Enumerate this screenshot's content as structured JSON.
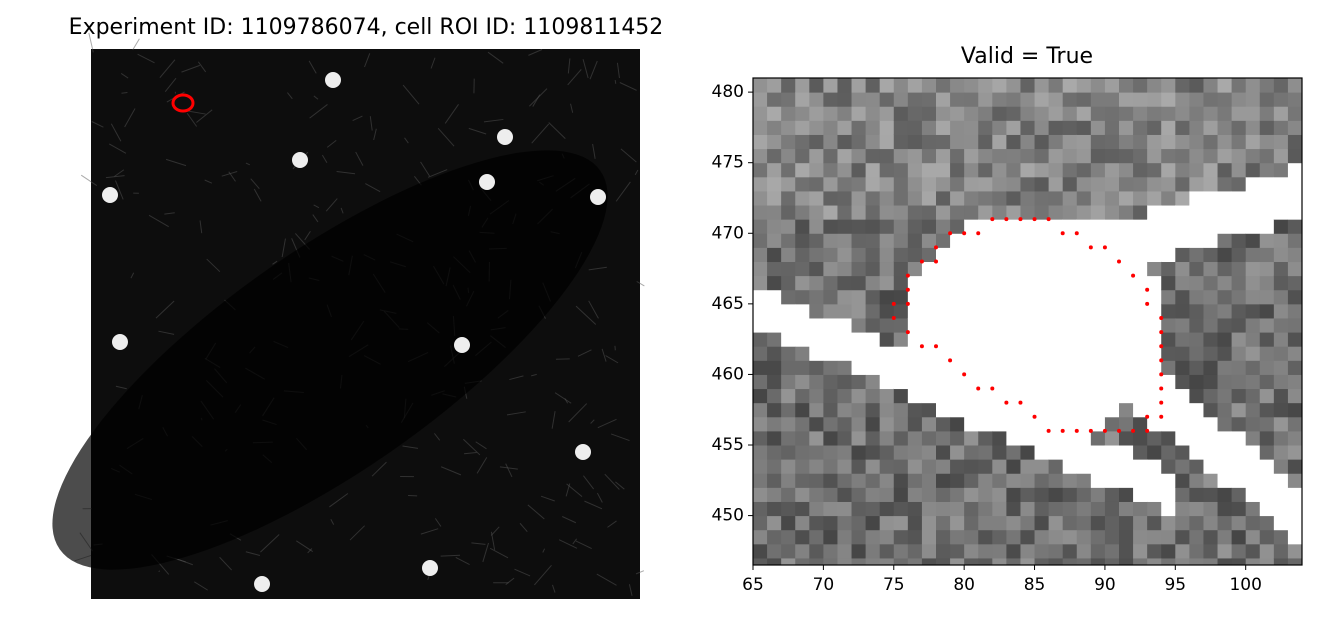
{
  "title": "Experiment ID: 1109786074, cell ROI ID: 1109811452",
  "chart_data": [
    {
      "type": "image"
    },
    {
      "type": "scatter",
      "title": "Valid = True",
      "color": "#ff0000",
      "x": [
        82,
        83,
        84,
        85,
        86,
        87,
        88,
        89,
        90,
        91,
        92,
        93,
        93,
        94,
        94,
        94,
        94,
        94,
        94,
        94,
        94,
        93,
        93,
        92,
        91,
        90,
        89,
        88,
        87,
        86,
        85,
        84,
        83,
        82,
        81,
        80,
        79,
        78,
        77,
        76,
        75,
        75,
        76,
        76,
        76,
        77,
        78,
        78,
        79,
        80,
        81
      ],
      "y": [
        471,
        471,
        471,
        471,
        471,
        470,
        470,
        469,
        469,
        468,
        467,
        466,
        465,
        464,
        463,
        462,
        461,
        460,
        459,
        458,
        457,
        457,
        456,
        456,
        456,
        456,
        456,
        456,
        456,
        456,
        457,
        458,
        458,
        459,
        459,
        460,
        461,
        462,
        462,
        463,
        464,
        465,
        465,
        466,
        467,
        468,
        468,
        469,
        470,
        470,
        470
      ],
      "xlim": [
        65,
        104
      ],
      "ylim": [
        446.5,
        481
      ],
      "xticks": [
        65,
        70,
        75,
        80,
        85,
        90,
        95,
        100
      ],
      "yticks": [
        450,
        455,
        460,
        465,
        470,
        475,
        480
      ]
    }
  ]
}
